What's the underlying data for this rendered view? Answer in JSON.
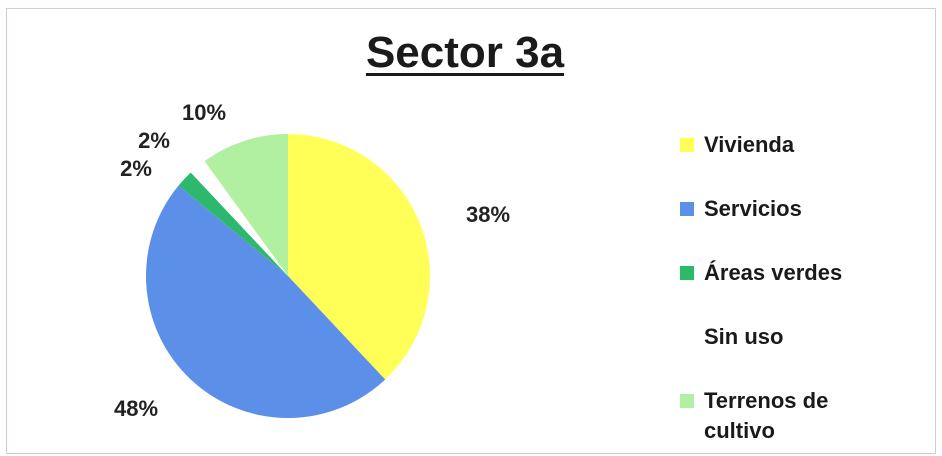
{
  "chart_data": {
    "type": "pie",
    "title": "Sector 3a",
    "categories": [
      "Vivienda",
      "Servicios",
      "Áreas verdes",
      "Sin uso",
      "Terrenos de cultivo"
    ],
    "values": [
      38,
      48,
      2,
      2,
      10
    ],
    "labels": [
      "38%",
      "48%",
      "2%",
      "2%",
      "10%"
    ],
    "colors": [
      "#ffff57",
      "#5b8fe8",
      "#2db86e",
      "#ffffff",
      "#b0f0a0"
    ],
    "legend_position": "right"
  }
}
